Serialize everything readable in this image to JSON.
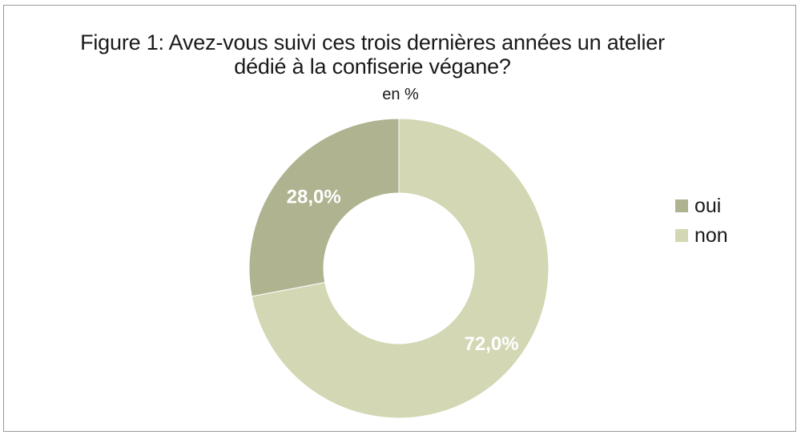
{
  "chart_data": {
    "type": "pie",
    "title": "Figure 1: Avez-vous suivi ces trois dernières années un atelier dédié à la confiserie végane?",
    "title_lines": [
      "Figure 1: Avez-vous suivi ces trois dernières années un atelier",
      "dédié à la confiserie végane?"
    ],
    "subtitle": "en %",
    "donut": true,
    "legend_position": "right",
    "slices": [
      {
        "label": "oui",
        "value": 28.0,
        "value_label": "28,0%",
        "color": "#afb38f"
      },
      {
        "label": "non",
        "value": 72.0,
        "value_label": "72,0%",
        "color": "#d3d7b3"
      }
    ]
  }
}
